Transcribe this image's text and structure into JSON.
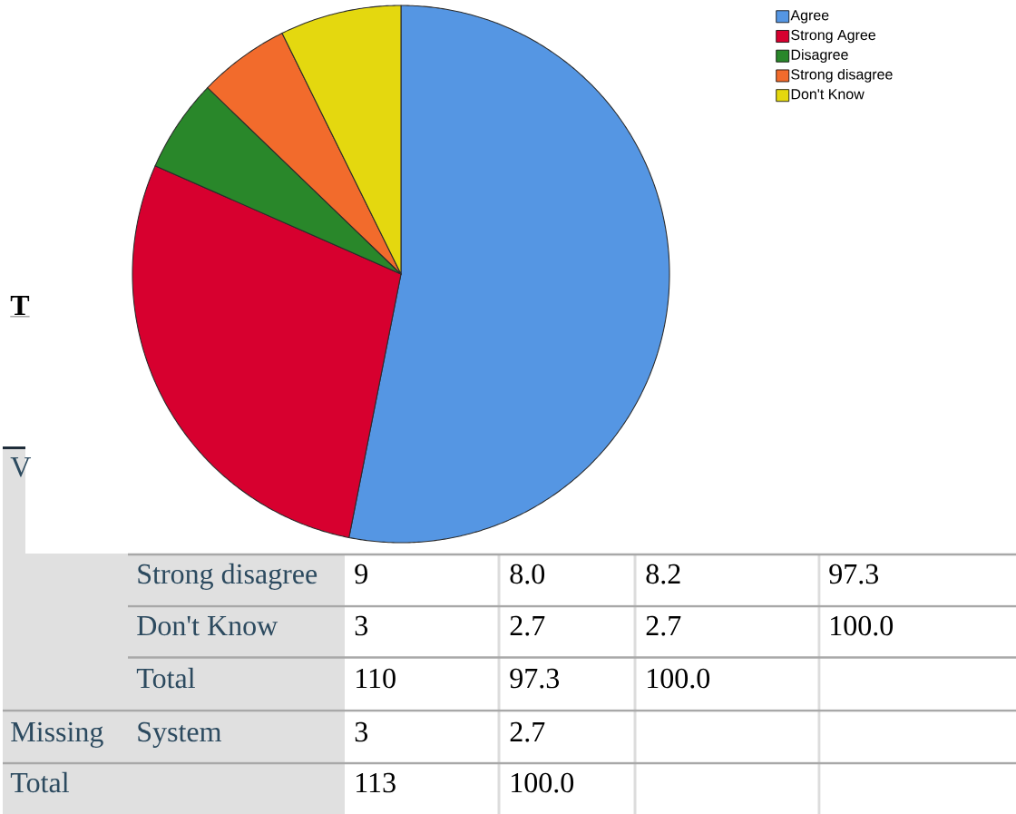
{
  "chart_data": {
    "type": "pie",
    "categories": [
      "Agree",
      "Strong Agree",
      "Disagree",
      "Strong disagree",
      "Don't Know"
    ],
    "values": [
      53.1,
      28.5,
      5.6,
      5.5,
      7.3
    ],
    "colors": [
      "#5596e3",
      "#d7002f",
      "#29872a",
      "#f26b2c",
      "#e4d80f"
    ],
    "legend": "top right",
    "annotations": [
      "T",
      "V",
      "Strong disagree",
      "9",
      "8.0",
      "8.2",
      "97.3",
      "Don't Know",
      "3",
      "2.7",
      "2.7",
      "100.0",
      "Total",
      "110",
      "97.3",
      "100.0",
      "Missing",
      "System",
      "3",
      "2.7",
      "Total",
      "113",
      "100.0"
    ]
  }
}
